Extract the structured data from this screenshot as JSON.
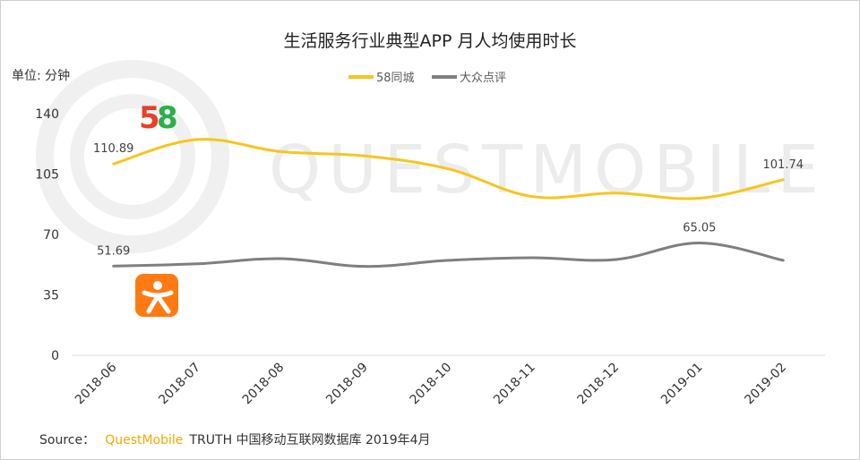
{
  "chart_data": {
    "type": "line",
    "title": "生活服务行业典型APP 月人均使用时长",
    "ylabel": "单位: 分钟",
    "xlabel": "",
    "categories": [
      "2018-06",
      "2018-07",
      "2018-08",
      "2018-09",
      "2018-10",
      "2018-11",
      "2018-12",
      "2019-01",
      "2019-02"
    ],
    "ylim": [
      0,
      140
    ],
    "yticks": [
      0,
      35,
      70,
      105,
      140
    ],
    "grid": false,
    "legend": "top-center",
    "series": [
      {
        "name": "58同城",
        "color": "#f7c51e",
        "values": [
          110.89,
          125,
          118,
          115.5,
          108,
          92,
          94,
          91,
          101.74
        ],
        "labels": [
          {
            "index": 0,
            "text": "110.89"
          },
          {
            "index": 8,
            "text": "101.74"
          }
        ]
      },
      {
        "name": "大众点评",
        "color": "#7f7f7f",
        "values": [
          51.69,
          53,
          56,
          51.5,
          55,
          56.5,
          55.5,
          65.05,
          55
        ],
        "labels": [
          {
            "index": 0,
            "text": "51.69"
          },
          {
            "index": 7,
            "text": "65.05"
          }
        ]
      }
    ]
  },
  "logos": {
    "app58": {
      "text": "58",
      "colors": [
        "#e8402a",
        "#2f9bd6",
        "#2bb04a",
        "#f5b111"
      ]
    },
    "dianping": {
      "color": "#ff7a12"
    }
  },
  "watermark": "QUESTMOBILE",
  "source": {
    "prefix": "Source：",
    "brand": "QuestMobile",
    "rest": "TRUTH 中国移动互联网数据库 2019年4月"
  }
}
